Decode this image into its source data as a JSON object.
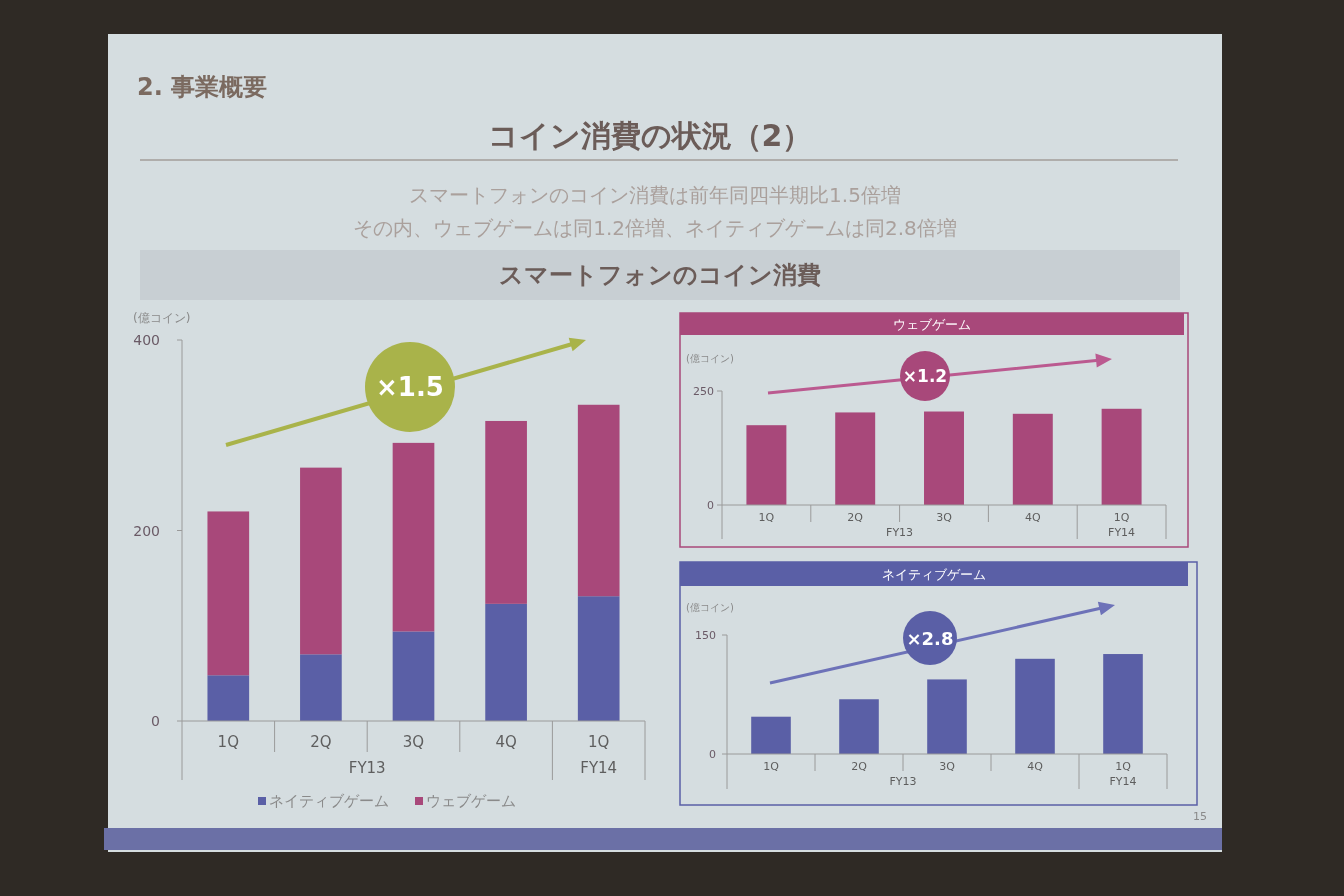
{
  "chart_data": [
    {
      "type": "bar",
      "title": "スマートフォンのコイン消費",
      "ylabel": "(億コイン)",
      "categories": [
        "1Q",
        "2Q",
        "3Q",
        "4Q",
        "1Q"
      ],
      "stacked": true,
      "series": [
        {
          "name": "ネイティブゲーム",
          "color": "#5a5fa6",
          "values": [
            48,
            70,
            94,
            123,
            131
          ]
        },
        {
          "name": "ウェブゲーム",
          "color": "#a8487a",
          "values": [
            172,
            196,
            198,
            192,
            201
          ]
        }
      ],
      "ylim": [
        0,
        400
      ],
      "yticks": [
        0,
        200,
        400
      ],
      "legend": "bottom",
      "annotations": [
        "×1.5",
        "FY13",
        "FY14",
        "2. 事業概要",
        "コイン消費の状況（2）",
        "スマートフォンのコイン消費は前年同四半期比1.5倍増",
        "その内、ウェブゲームは同1.2倍増、ネイティブゲームは同2.8倍増",
        "15"
      ]
    },
    {
      "type": "bar",
      "title": "ウェブゲーム",
      "ylabel": "(億コイン)",
      "categories": [
        "1Q",
        "2Q",
        "3Q",
        "4Q",
        "1Q"
      ],
      "values": [
        175,
        203,
        205,
        200,
        211
      ],
      "color": "#a8487a",
      "ylim": [
        0,
        250
      ],
      "yticks": [
        0,
        250
      ],
      "annotations": [
        "×1.2",
        "FY13",
        "FY14"
      ]
    },
    {
      "type": "bar",
      "title": "ネイティブゲーム",
      "ylabel": "(億コイン)",
      "categories": [
        "1Q",
        "2Q",
        "3Q",
        "4Q",
        "1Q"
      ],
      "values": [
        47,
        69,
        94,
        120,
        126
      ],
      "color": "#5a5fa6",
      "ylim": [
        0,
        150
      ],
      "yticks": [
        0,
        150
      ],
      "annotations": [
        "×2.8",
        "FY13",
        "FY14"
      ]
    }
  ]
}
